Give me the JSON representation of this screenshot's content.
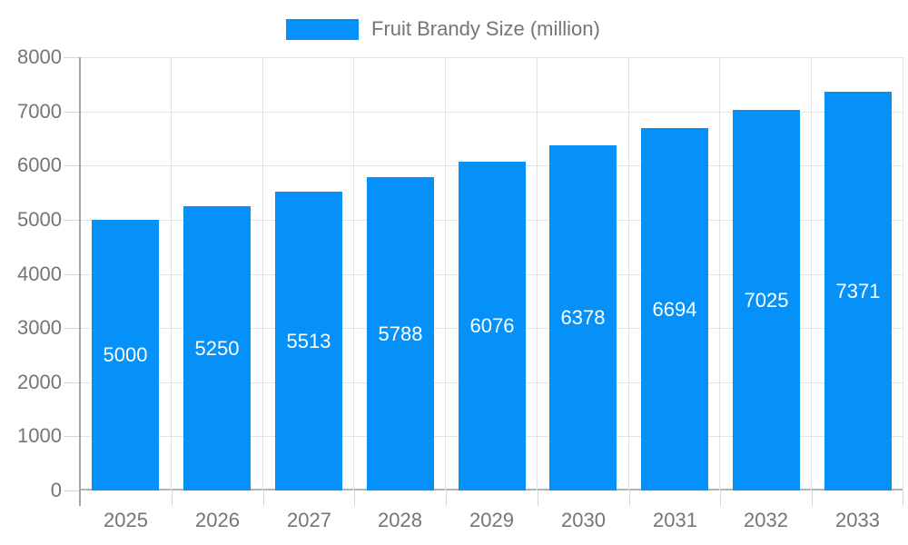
{
  "legend": {
    "label": "Fruit Brandy Size (million)"
  },
  "chart_data": {
    "type": "bar",
    "title": "Fruit Brandy Size (million)",
    "categories": [
      "2025",
      "2026",
      "2027",
      "2028",
      "2029",
      "2030",
      "2031",
      "2032",
      "2033"
    ],
    "values": [
      5000,
      5250,
      5513,
      5788,
      6076,
      6378,
      6694,
      7025,
      7371
    ],
    "xlabel": "",
    "ylabel": "",
    "ylim": [
      0,
      8000
    ],
    "ytick_step": 1000,
    "grid": true,
    "legend_position": "top-center",
    "value_labels": "inside-vertical-center"
  },
  "colors": {
    "bar": "#0691f9",
    "grid": "#e3e3e3",
    "baseline": "#b3b3b3",
    "axis_line": "#a3a3a3",
    "tick": "#d6d6d6",
    "axis_text": "#757575",
    "value_label_text": "#ffffff",
    "background": "#ffffff"
  }
}
